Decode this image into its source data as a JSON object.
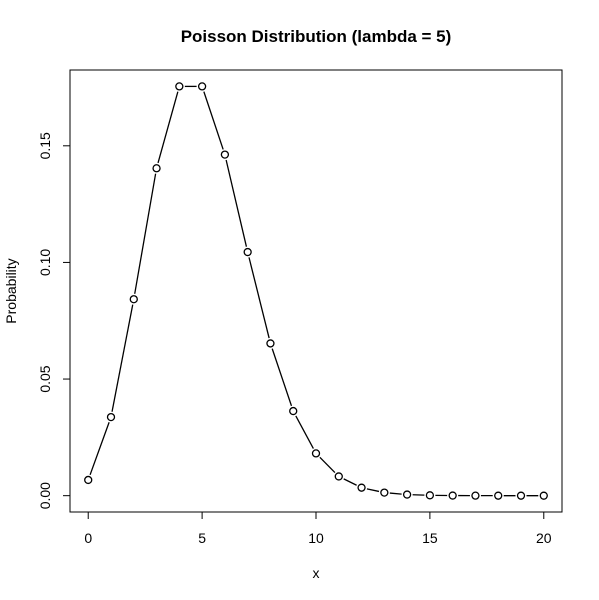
{
  "chart_data": {
    "type": "line",
    "title": "Poisson Distribution (lambda = 5)",
    "xlabel": "x",
    "ylabel": "Probability",
    "x": [
      0,
      1,
      2,
      3,
      4,
      5,
      6,
      7,
      8,
      9,
      10,
      11,
      12,
      13,
      14,
      15,
      16,
      17,
      18,
      19,
      20
    ],
    "y": [
      0.006738,
      0.03369,
      0.084224,
      0.140374,
      0.175467,
      0.175467,
      0.146223,
      0.104445,
      0.065278,
      0.036266,
      0.018133,
      0.008242,
      0.003434,
      0.001321,
      0.000472,
      0.000157,
      4.9e-05,
      1.4e-05,
      4e-06,
      1e-06,
      0.0
    ],
    "xlim": [
      -0.8,
      20.8
    ],
    "ylim": [
      -0.007,
      0.1825
    ],
    "xticks": [
      0,
      5,
      10,
      15,
      20
    ],
    "yticks": [
      0.0,
      0.05,
      0.1,
      0.15
    ],
    "xtick_labels": [
      "0",
      "5",
      "10",
      "15",
      "20"
    ],
    "ytick_labels": [
      "0.00",
      "0.05",
      "0.10",
      "0.15"
    ],
    "grid": false,
    "markers": "open-circle",
    "line_style": "both-gapped",
    "colors": {
      "line": "#000000",
      "marker_fill": "#ffffff",
      "background": "#ffffff"
    }
  }
}
